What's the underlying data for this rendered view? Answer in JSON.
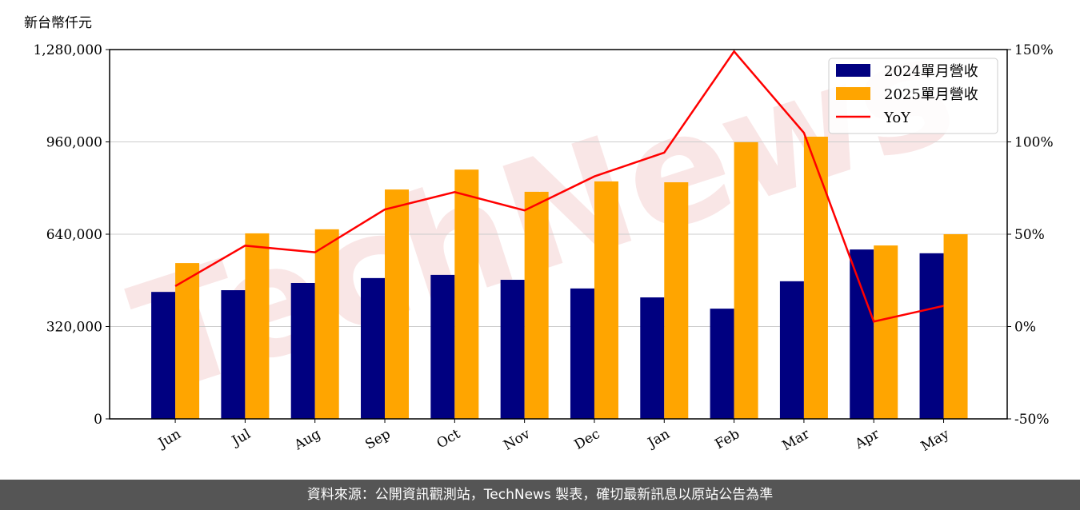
{
  "chart_data": {
    "type": "bar+line",
    "unit_label": "新台幣仟元",
    "categories": [
      "Jun",
      "Jul",
      "Aug",
      "Sep",
      "Oct",
      "Nov",
      "Dec",
      "Jan",
      "Feb",
      "Mar",
      "Apr",
      "May"
    ],
    "series": [
      {
        "name": "2024單月營收",
        "type": "bar",
        "color": "#000080",
        "axis": "left",
        "values": [
          440000,
          446000,
          471000,
          488000,
          499000,
          482000,
          452000,
          421000,
          382000,
          477000,
          587000,
          574000
        ]
      },
      {
        "name": "2025單月營收",
        "type": "bar",
        "color": "#FFA500",
        "axis": "left",
        "values": [
          540000,
          643000,
          657000,
          795000,
          864000,
          787000,
          823000,
          820000,
          959000,
          978000,
          601000,
          640000
        ]
      },
      {
        "name": "YoY",
        "type": "line",
        "color": "#FF0000",
        "axis": "right",
        "values": [
          21.9,
          43.8,
          40.2,
          63.4,
          72.8,
          62.9,
          81.3,
          94.2,
          149,
          104.9,
          2.7,
          11.2
        ]
      }
    ],
    "ylim_left": [
      0,
      1280000
    ],
    "yticks_left": [
      "0",
      "320,000",
      "640,000",
      "960,000",
      "1,280,000"
    ],
    "ylim_right": [
      -50,
      150
    ],
    "yticks_right": [
      "-50%",
      "0%",
      "50%",
      "100%",
      "150%"
    ],
    "grid": "horizontal",
    "legend": "top-right",
    "watermark": "TechNews"
  },
  "footer": "資料來源：公開資訊觀測站，TechNews 製表，確切最新訊息以原站公告為準"
}
